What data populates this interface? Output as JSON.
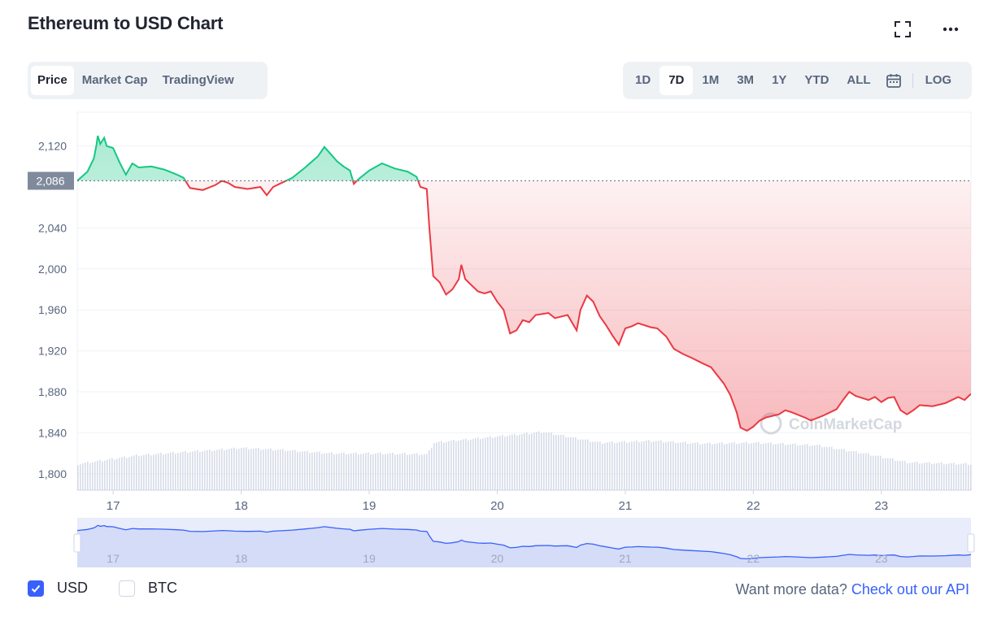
{
  "title": "Ethereum to USD Chart",
  "icons": {
    "expand": "expand-icon",
    "more": "more-icon",
    "calendar": "calendar-icon"
  },
  "tabs": [
    {
      "label": "Price",
      "active": true
    },
    {
      "label": "Market Cap",
      "active": false
    },
    {
      "label": "TradingView",
      "active": false
    }
  ],
  "ranges": [
    {
      "label": "1D",
      "active": false
    },
    {
      "label": "7D",
      "active": true
    },
    {
      "label": "1M",
      "active": false
    },
    {
      "label": "3M",
      "active": false
    },
    {
      "label": "1Y",
      "active": false
    },
    {
      "label": "YTD",
      "active": false
    },
    {
      "label": "ALL",
      "active": false
    }
  ],
  "log_label": "LOG",
  "legend": {
    "usd_label": "USD",
    "usd_checked": true,
    "btc_label": "BTC",
    "btc_checked": false
  },
  "more_data": {
    "text": "Want more data?",
    "link": "Check out our API"
  },
  "colors": {
    "up": "#16c784",
    "down": "#ea3943",
    "accent": "#3861fb",
    "text_secondary": "#58667e"
  },
  "chart_data": {
    "type": "line",
    "baseline_price": 2086,
    "baseline_label": "2,086",
    "y_ticks": [
      {
        "value": 2120,
        "label": "2,120"
      },
      {
        "value": 2040,
        "label": "2,040"
      },
      {
        "value": 2000,
        "label": "2,000"
      },
      {
        "value": 1960,
        "label": "1,960"
      },
      {
        "value": 1920,
        "label": "1,920"
      },
      {
        "value": 1880,
        "label": "1,880"
      },
      {
        "value": 1840,
        "label": "1,840"
      },
      {
        "value": 1800,
        "label": "1,800"
      }
    ],
    "ylim": [
      1784,
      2153
    ],
    "x_ticks": [
      {
        "value": 17,
        "label": "17"
      },
      {
        "value": 18,
        "label": "18"
      },
      {
        "value": 19,
        "label": "19"
      },
      {
        "value": 20,
        "label": "20"
      },
      {
        "value": 21,
        "label": "21"
      },
      {
        "value": 22,
        "label": "22"
      },
      {
        "value": 23,
        "label": "23"
      }
    ],
    "xlim": [
      16.72,
      23.7
    ],
    "watermark": "CoinMarketCap",
    "series": [
      {
        "points": [
          [
            16.72,
            2086
          ],
          [
            16.8,
            2095
          ],
          [
            16.85,
            2108
          ],
          [
            16.87,
            2121
          ],
          [
            16.88,
            2130
          ],
          [
            16.9,
            2122
          ],
          [
            16.93,
            2128
          ],
          [
            16.95,
            2120
          ],
          [
            17.0,
            2118
          ],
          [
            17.05,
            2104
          ],
          [
            17.1,
            2092
          ],
          [
            17.15,
            2103
          ],
          [
            17.2,
            2099
          ],
          [
            17.3,
            2100
          ],
          [
            17.4,
            2097
          ],
          [
            17.5,
            2092
          ],
          [
            17.55,
            2089
          ],
          [
            17.6,
            2079
          ],
          [
            17.7,
            2077
          ],
          [
            17.8,
            2082
          ],
          [
            17.85,
            2086
          ],
          [
            17.9,
            2084
          ],
          [
            17.95,
            2080
          ],
          [
            18.05,
            2078
          ],
          [
            18.15,
            2080
          ],
          [
            18.2,
            2072
          ],
          [
            18.25,
            2080
          ],
          [
            18.3,
            2083
          ],
          [
            18.4,
            2089
          ],
          [
            18.5,
            2099
          ],
          [
            18.6,
            2110
          ],
          [
            18.65,
            2119
          ],
          [
            18.7,
            2112
          ],
          [
            18.75,
            2105
          ],
          [
            18.8,
            2100
          ],
          [
            18.85,
            2096
          ],
          [
            18.88,
            2083
          ],
          [
            18.92,
            2088
          ],
          [
            19.0,
            2096
          ],
          [
            19.1,
            2103
          ],
          [
            19.2,
            2098
          ],
          [
            19.3,
            2095
          ],
          [
            19.37,
            2090
          ],
          [
            19.4,
            2080
          ],
          [
            19.45,
            2078
          ],
          [
            19.47,
            2040
          ],
          [
            19.5,
            1993
          ],
          [
            19.55,
            1987
          ],
          [
            19.6,
            1975
          ],
          [
            19.65,
            1980
          ],
          [
            19.7,
            1990
          ],
          [
            19.72,
            2004
          ],
          [
            19.75,
            1990
          ],
          [
            19.8,
            1984
          ],
          [
            19.85,
            1978
          ],
          [
            19.9,
            1976
          ],
          [
            19.95,
            1978
          ],
          [
            20.0,
            1968
          ],
          [
            20.05,
            1960
          ],
          [
            20.1,
            1937
          ],
          [
            20.15,
            1940
          ],
          [
            20.2,
            1950
          ],
          [
            20.25,
            1948
          ],
          [
            20.3,
            1955
          ],
          [
            20.4,
            1957
          ],
          [
            20.45,
            1952
          ],
          [
            20.55,
            1955
          ],
          [
            20.62,
            1940
          ],
          [
            20.65,
            1960
          ],
          [
            20.7,
            1974
          ],
          [
            20.75,
            1968
          ],
          [
            20.8,
            1954
          ],
          [
            20.85,
            1945
          ],
          [
            20.9,
            1935
          ],
          [
            20.95,
            1926
          ],
          [
            21.0,
            1942
          ],
          [
            21.05,
            1944
          ],
          [
            21.1,
            1947
          ],
          [
            21.2,
            1943
          ],
          [
            21.25,
            1942
          ],
          [
            21.32,
            1934
          ],
          [
            21.38,
            1922
          ],
          [
            21.45,
            1917
          ],
          [
            21.52,
            1913
          ],
          [
            21.6,
            1908
          ],
          [
            21.67,
            1904
          ],
          [
            21.72,
            1896
          ],
          [
            21.77,
            1888
          ],
          [
            21.82,
            1877
          ],
          [
            21.87,
            1860
          ],
          [
            21.9,
            1845
          ],
          [
            21.95,
            1842
          ],
          [
            22.0,
            1846
          ],
          [
            22.05,
            1852
          ],
          [
            22.1,
            1855
          ],
          [
            22.2,
            1858
          ],
          [
            22.25,
            1862
          ],
          [
            22.3,
            1860
          ],
          [
            22.4,
            1855
          ],
          [
            22.45,
            1852
          ],
          [
            22.55,
            1857
          ],
          [
            22.65,
            1863
          ],
          [
            22.7,
            1872
          ],
          [
            22.75,
            1880
          ],
          [
            22.8,
            1876
          ],
          [
            22.9,
            1872
          ],
          [
            22.95,
            1875
          ],
          [
            23.0,
            1870
          ],
          [
            23.05,
            1874
          ],
          [
            23.1,
            1875
          ],
          [
            23.15,
            1862
          ],
          [
            23.2,
            1858
          ],
          [
            23.25,
            1862
          ],
          [
            23.3,
            1867
          ],
          [
            23.4,
            1866
          ],
          [
            23.5,
            1869
          ],
          [
            23.6,
            1875
          ],
          [
            23.65,
            1872
          ],
          [
            23.7,
            1878
          ]
        ]
      }
    ],
    "volume": [
      {
        "x": 16.72,
        "v": 0.28
      },
      {
        "x": 16.95,
        "v": 0.33
      },
      {
        "x": 17.2,
        "v": 0.38
      },
      {
        "x": 17.6,
        "v": 0.42
      },
      {
        "x": 18.0,
        "v": 0.46
      },
      {
        "x": 18.3,
        "v": 0.44
      },
      {
        "x": 18.7,
        "v": 0.4
      },
      {
        "x": 19.1,
        "v": 0.4
      },
      {
        "x": 19.45,
        "v": 0.39
      },
      {
        "x": 19.5,
        "v": 0.52
      },
      {
        "x": 20.0,
        "v": 0.59
      },
      {
        "x": 20.35,
        "v": 0.64
      },
      {
        "x": 20.5,
        "v": 0.6
      },
      {
        "x": 20.8,
        "v": 0.52
      },
      {
        "x": 21.2,
        "v": 0.54
      },
      {
        "x": 21.6,
        "v": 0.51
      },
      {
        "x": 22.0,
        "v": 0.52
      },
      {
        "x": 22.5,
        "v": 0.49
      },
      {
        "x": 22.9,
        "v": 0.39
      },
      {
        "x": 23.2,
        "v": 0.3
      },
      {
        "x": 23.7,
        "v": 0.28
      }
    ]
  }
}
